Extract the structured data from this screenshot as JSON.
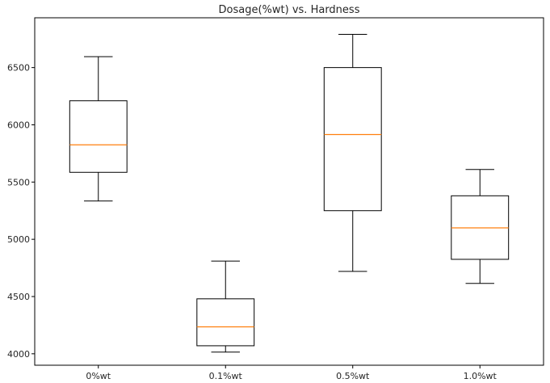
{
  "chart_data": {
    "type": "box",
    "title": "Dosage(%wt) vs. Hardness",
    "xlabel": "",
    "ylabel": "",
    "categories": [
      "0%wt",
      "0.1%wt",
      "0.5%wt",
      "1.0%wt"
    ],
    "boxes": [
      {
        "whisker_low": 5335,
        "q1": 5585,
        "median": 5825,
        "q3": 6210,
        "whisker_high": 6595
      },
      {
        "whisker_low": 4015,
        "q1": 4070,
        "median": 4235,
        "q3": 4480,
        "whisker_high": 4810
      },
      {
        "whisker_low": 4720,
        "q1": 5250,
        "median": 5915,
        "q3": 6500,
        "whisker_high": 6790
      },
      {
        "whisker_low": 4615,
        "q1": 4825,
        "median": 5100,
        "q3": 5380,
        "whisker_high": 5610
      }
    ],
    "yticks": [
      4000,
      4500,
      5000,
      5500,
      6000,
      6500
    ],
    "ylim": [
      3900,
      6935
    ],
    "grid": false,
    "colors": {
      "box": "#000000",
      "median": "#ff7f0e",
      "axis": "#000000"
    }
  }
}
